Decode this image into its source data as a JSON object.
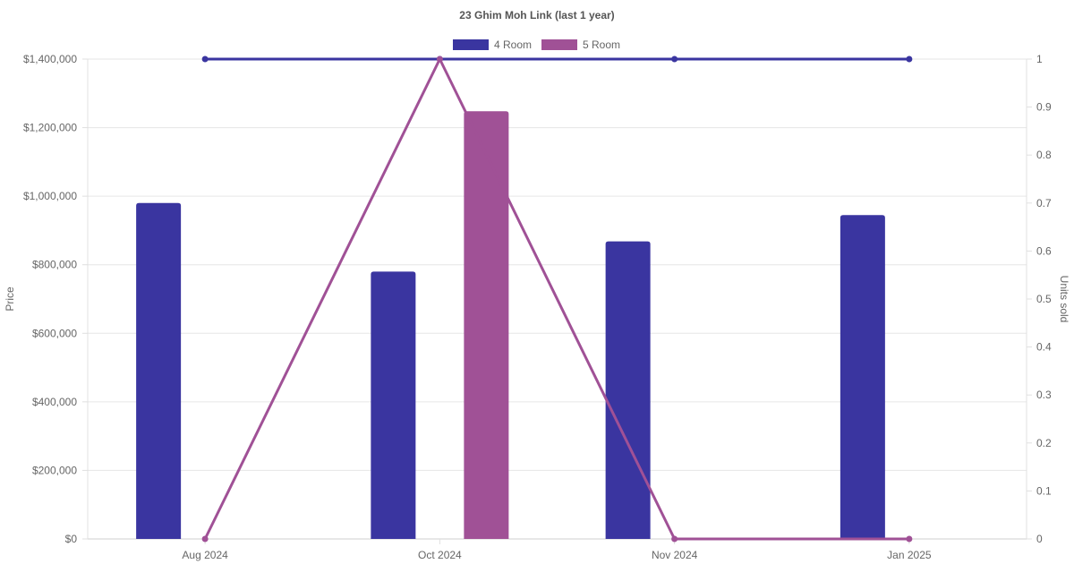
{
  "chart_data": {
    "type": "bar",
    "title": "23 Ghim Moh Link (last 1 year)",
    "categories": [
      "Aug 2024",
      "Oct 2024",
      "Nov 2024",
      "Jan 2025"
    ],
    "y_left": {
      "label": "Price",
      "range": [
        0,
        1400000
      ],
      "ticks": [
        "$0",
        "$200,000",
        "$400,000",
        "$600,000",
        "$800,000",
        "$1,000,000",
        "$1,200,000",
        "$1,400,000"
      ]
    },
    "y_right": {
      "label": "Units sold",
      "range": [
        0,
        1
      ],
      "ticks": [
        "0",
        "0.1",
        "0.2",
        "0.3",
        "0.4",
        "0.5",
        "0.6",
        "0.7",
        "0.8",
        "0.9",
        "1"
      ]
    },
    "series": [
      {
        "name": "4 Room",
        "color": "#3a35a0",
        "price": [
          980000,
          780000,
          868000,
          945000
        ],
        "units": [
          1,
          1,
          1,
          1
        ]
      },
      {
        "name": "5 Room",
        "color": "#a05196",
        "price": [
          null,
          1248000,
          null,
          null
        ],
        "units": [
          0,
          1,
          0,
          0
        ]
      }
    ],
    "grid": true,
    "legend": "top-center"
  }
}
